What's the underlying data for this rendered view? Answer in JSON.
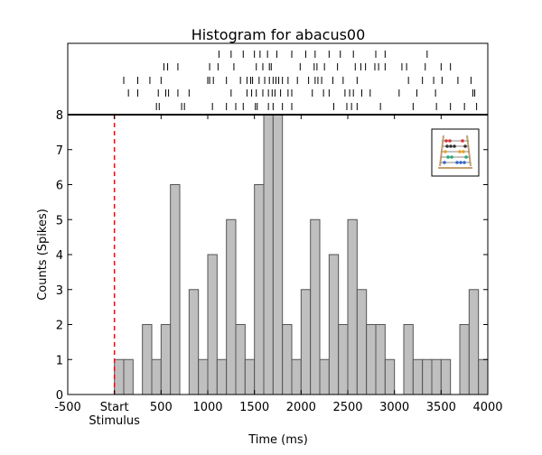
{
  "chart_data": {
    "type": "bar",
    "title": "Histogram for abacus00",
    "xlabel": "Time (ms)",
    "ylabel": "Counts (Spikes)",
    "xlim": [
      -500,
      4000
    ],
    "ylim": [
      0,
      8
    ],
    "x_ticks": [
      {
        "value": -500,
        "label": "-500"
      },
      {
        "value": 0,
        "label": "Start"
      },
      {
        "value": 500,
        "label": "500"
      },
      {
        "value": 1000,
        "label": "1000"
      },
      {
        "value": 1500,
        "label": "1500"
      },
      {
        "value": 2000,
        "label": "2000"
      },
      {
        "value": 2500,
        "label": "2500"
      },
      {
        "value": 3000,
        "label": "3000"
      },
      {
        "value": 3500,
        "label": "3500"
      },
      {
        "value": 4000,
        "label": "4000"
      }
    ],
    "x_sublabel": {
      "value": 0,
      "label": "Stimulus"
    },
    "y_ticks": [
      0,
      1,
      2,
      3,
      4,
      5,
      6,
      7,
      8
    ],
    "bin_width": 100,
    "bin_starts": [
      0,
      100,
      200,
      300,
      400,
      500,
      600,
      700,
      800,
      900,
      1000,
      1100,
      1200,
      1300,
      1400,
      1500,
      1600,
      1700,
      1800,
      1900,
      2000,
      2100,
      2200,
      2300,
      2400,
      2500,
      2600,
      2700,
      2800,
      2900,
      3000,
      3100,
      3200,
      3300,
      3400,
      3500,
      3600,
      3700,
      3800,
      3900
    ],
    "counts": [
      1,
      1,
      0,
      2,
      1,
      2,
      6,
      0,
      3,
      1,
      4,
      1,
      5,
      2,
      1,
      6,
      8,
      8,
      2,
      1,
      3,
      5,
      1,
      4,
      2,
      5,
      3,
      2,
      2,
      1,
      0,
      2,
      1,
      1,
      1,
      1,
      0,
      2,
      3,
      1
    ],
    "stimulus_marker": {
      "x": 0,
      "color": "#ff0000",
      "style": "dashed"
    },
    "raster": [
      [
        1120,
        1250,
        1380,
        1500,
        1560,
        1640,
        1740,
        1900,
        2050,
        2150,
        2300,
        2420,
        2560,
        2800,
        2900,
        3350
      ],
      [
        530,
        570,
        680,
        1020,
        1110,
        1280,
        1520,
        1590,
        1660,
        1680,
        1990,
        2140,
        2170,
        2250,
        2390,
        2580,
        2640,
        2690,
        2790,
        2830,
        2900,
        3080,
        3130,
        3330,
        3500,
        3600
      ],
      [
        100,
        250,
        380,
        500,
        1000,
        1020,
        1060,
        1200,
        1350,
        1420,
        1460,
        1480,
        1550,
        1610,
        1660,
        1700,
        1730,
        1760,
        1800,
        1860,
        1960,
        2080,
        2150,
        2180,
        2220,
        2340,
        2450,
        2600,
        3150,
        3300,
        3420,
        3510,
        3680,
        3820
      ],
      [
        150,
        250,
        470,
        550,
        580,
        680,
        800,
        1250,
        1420,
        1470,
        1520,
        1590,
        1650,
        1690,
        1720,
        1780,
        1860,
        1900,
        2120,
        2240,
        2300,
        2470,
        2520,
        2560,
        2650,
        2740,
        3050,
        3240,
        3440,
        3840,
        3860
      ],
      [
        450,
        480,
        720,
        750,
        1050,
        1200,
        1300,
        1380,
        1510,
        1530,
        1650,
        1700,
        1800,
        1900,
        2350,
        2490,
        2540,
        2600,
        2850,
        3200,
        3450,
        3600,
        3750,
        3880
      ]
    ],
    "raster_color": "#000000",
    "bar_fill": "#bfbfbf",
    "bar_edge": "#555555",
    "grid": false
  }
}
